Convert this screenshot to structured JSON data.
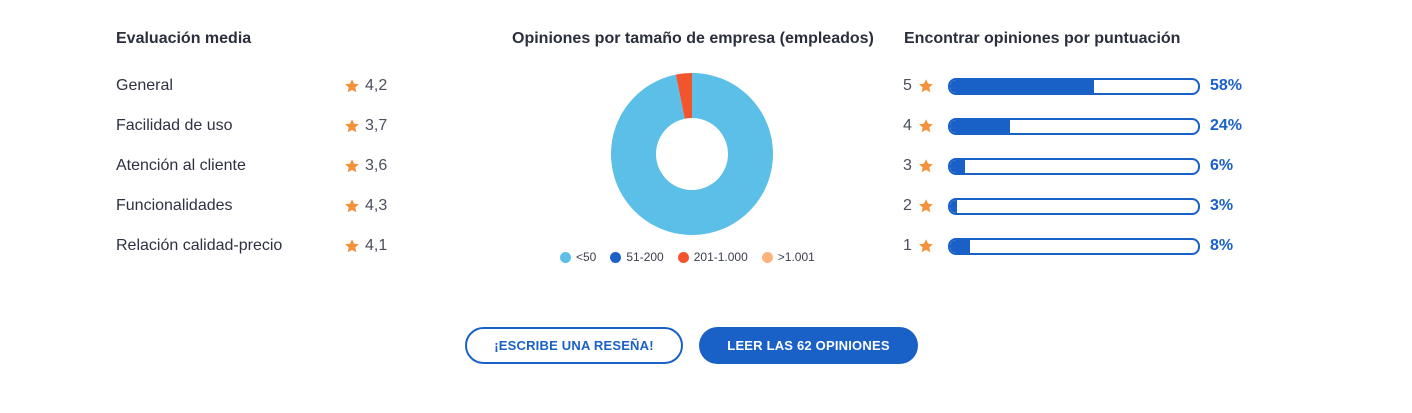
{
  "average": {
    "title": "Evaluación media",
    "rows": [
      {
        "label": "General",
        "score": "4,2"
      },
      {
        "label": "Facilidad de uso",
        "score": "3,7"
      },
      {
        "label": "Atención al cliente",
        "score": "3,6"
      },
      {
        "label": "Funcionalidades",
        "score": "4,3"
      },
      {
        "label": "Relación calidad-precio",
        "score": "4,1"
      }
    ]
  },
  "company_size": {
    "title": "Opiniones por tamaño de empresa (empleados)",
    "legend": [
      {
        "label": "<50",
        "color": "#5bbfe8"
      },
      {
        "label": "51-200",
        "color": "#1a61c7"
      },
      {
        "label": "201-1.000",
        "color": "#f2542d"
      },
      {
        "label": ">1.001",
        "color": "#ffb37a"
      }
    ]
  },
  "chart_data": {
    "type": "pie",
    "title": "Opiniones por tamaño de empresa (empleados)",
    "categories": [
      "<50",
      "51-200",
      "201-1.000",
      ">1.001"
    ],
    "values": [
      96.8,
      0,
      3.2,
      0
    ],
    "colors": [
      "#5bbfe8",
      "#1a61c7",
      "#f2542d",
      "#ffb37a"
    ],
    "donut": true,
    "legend_position": "bottom"
  },
  "distribution": {
    "title": "Encontrar opiniones por puntuación",
    "rows": [
      {
        "stars": "5",
        "percent": 58,
        "label": "58%"
      },
      {
        "stars": "4",
        "percent": 24,
        "label": "24%"
      },
      {
        "stars": "3",
        "percent": 6,
        "label": "6%"
      },
      {
        "stars": "2",
        "percent": 3,
        "label": "3%"
      },
      {
        "stars": "1",
        "percent": 8,
        "label": "8%"
      }
    ]
  },
  "buttons": {
    "write_review": "¡ESCRIBE UNA RESEÑA!",
    "read_reviews": "LEER LAS 62 OPINIONES"
  },
  "colors": {
    "accent": "#1a61c7",
    "star": "#f5923e"
  },
  "icons": {
    "star": "star-icon"
  }
}
